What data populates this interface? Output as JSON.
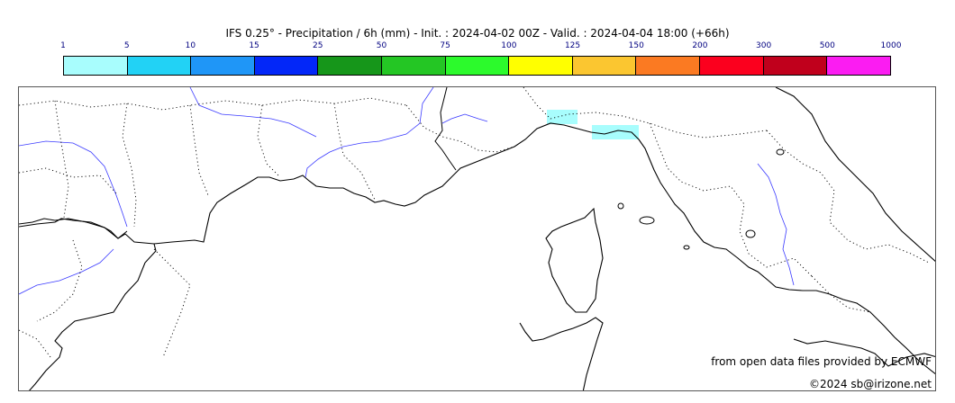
{
  "title": "IFS 0.25° - Precipitation / 6h (mm) - Init. : 2024-04-02 00Z - Valid. : 2024-04-04 18:00 (+66h)",
  "scale": {
    "ticks": [
      "1",
      "5",
      "10",
      "15",
      "25",
      "50",
      "75",
      "100",
      "125",
      "150",
      "200",
      "300",
      "500",
      "1000"
    ],
    "colors": [
      "#a8fdfd",
      "#22d2f5",
      "#1f96f7",
      "#0327f8",
      "#16961a",
      "#24c624",
      "#2cfa2c",
      "#ffff00",
      "#fbc630",
      "#fb7a22",
      "#fb001e",
      "#c0001c",
      "#fb1cf2"
    ]
  },
  "precip_areas": [
    {
      "label": "ligurian-coast-west",
      "class": "1-5"
    },
    {
      "label": "ligurian-coast-east",
      "class": "1-5"
    }
  ],
  "credit": "from open data files provided by ECMWF",
  "copyright": "©2024 sb@irizone.net"
}
